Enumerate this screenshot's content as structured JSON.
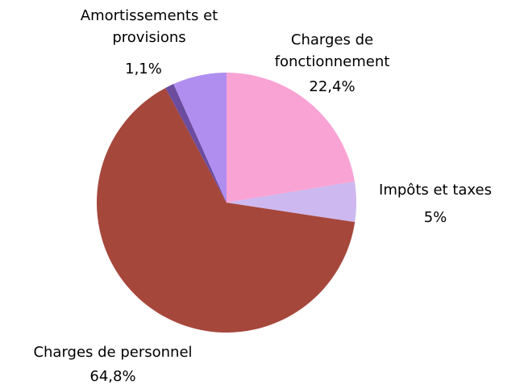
{
  "chart_data": {
    "type": "pie",
    "categories": [
      "Charges de fonctionnement",
      "Impôts et taxes",
      "Charges de personnel",
      "Amortissements et provisions",
      null
    ],
    "values": [
      22.4,
      5,
      64.8,
      1.1,
      6.7
    ],
    "value_labels": [
      "22,4%",
      "5%",
      "64,8%",
      "1,1%",
      null
    ],
    "colors": [
      "#f9a3d5",
      "#cdb9ef",
      "#a6473c",
      "#6b4c9e",
      "#b08ef0"
    ]
  }
}
